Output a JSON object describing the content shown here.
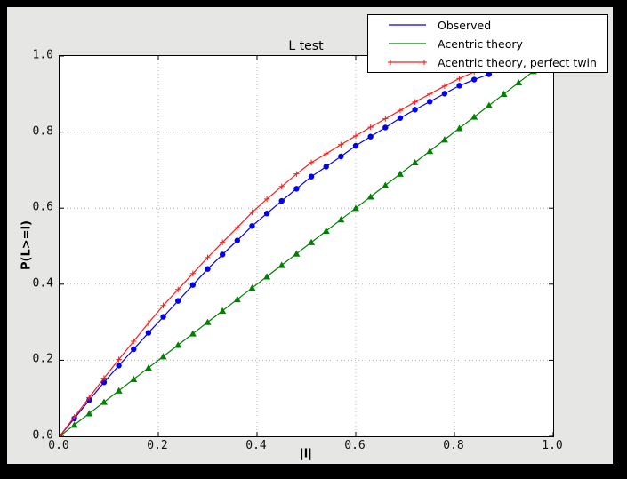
{
  "window": {
    "outer_bg": "#000000",
    "figure_bg": "#e6e6e4",
    "plot_bg": "#ffffff"
  },
  "chart_data": {
    "type": "line",
    "title": "L test",
    "xlabel": "|l|",
    "ylabel": "P(L>=l)",
    "xlim": [
      0.0,
      1.0
    ],
    "ylim": [
      0.0,
      1.0
    ],
    "xticks": [
      "0.0",
      "0.2",
      "0.4",
      "0.6",
      "0.8",
      "1.0"
    ],
    "yticks": [
      "0.0",
      "0.2",
      "0.4",
      "0.6",
      "0.8",
      "1.0"
    ],
    "grid": "dotted gridlines at 0.2 intervals on both axes",
    "grid_color": "#b4b4b4",
    "legend_position": "upper right, overlapping top of axes",
    "series": [
      {
        "name": "Observed",
        "color": "#0000ee",
        "marker": "circle",
        "legend_sample_markers": false,
        "x": [
          0.0,
          0.03,
          0.06,
          0.09,
          0.12,
          0.15,
          0.18,
          0.21,
          0.24,
          0.27,
          0.3,
          0.33,
          0.36,
          0.39,
          0.42,
          0.45,
          0.48,
          0.51,
          0.54,
          0.57,
          0.6,
          0.63,
          0.66,
          0.69,
          0.72,
          0.75,
          0.78,
          0.81,
          0.84,
          0.87
        ],
        "y": [
          0.0,
          0.047,
          0.095,
          0.142,
          0.186,
          0.229,
          0.272,
          0.314,
          0.356,
          0.398,
          0.44,
          0.478,
          0.515,
          0.553,
          0.586,
          0.619,
          0.651,
          0.683,
          0.709,
          0.736,
          0.764,
          0.788,
          0.812,
          0.837,
          0.859,
          0.88,
          0.901,
          0.922,
          0.938,
          0.952
        ]
      },
      {
        "name": "Acentric theory",
        "color": "#008000",
        "marker": "triangle",
        "legend_sample_markers": false,
        "x": [
          0.0,
          0.03,
          0.06,
          0.09,
          0.12,
          0.15,
          0.18,
          0.21,
          0.24,
          0.27,
          0.3,
          0.33,
          0.36,
          0.39,
          0.42,
          0.45,
          0.48,
          0.51,
          0.54,
          0.57,
          0.6,
          0.63,
          0.66,
          0.69,
          0.72,
          0.75,
          0.78,
          0.81,
          0.84,
          0.87,
          0.9,
          0.93,
          0.96
        ],
        "y": [
          0.0,
          0.03,
          0.06,
          0.09,
          0.12,
          0.15,
          0.18,
          0.21,
          0.24,
          0.27,
          0.3,
          0.33,
          0.36,
          0.39,
          0.42,
          0.45,
          0.48,
          0.51,
          0.54,
          0.57,
          0.6,
          0.63,
          0.66,
          0.69,
          0.72,
          0.75,
          0.78,
          0.81,
          0.84,
          0.87,
          0.9,
          0.93,
          0.96
        ]
      },
      {
        "name": "Acentric theory, perfect twin",
        "color": "#ff1a1a",
        "marker": "plus",
        "legend_sample_markers": true,
        "x": [
          0.0,
          0.03,
          0.06,
          0.09,
          0.12,
          0.15,
          0.18,
          0.21,
          0.24,
          0.27,
          0.3,
          0.33,
          0.36,
          0.39,
          0.42,
          0.45,
          0.48,
          0.51,
          0.54,
          0.57,
          0.6,
          0.63,
          0.66,
          0.69,
          0.72,
          0.75,
          0.78,
          0.81,
          0.84
        ],
        "y": [
          0.0,
          0.051,
          0.102,
          0.153,
          0.202,
          0.25,
          0.298,
          0.344,
          0.386,
          0.428,
          0.47,
          0.51,
          0.549,
          0.589,
          0.624,
          0.657,
          0.69,
          0.72,
          0.743,
          0.767,
          0.79,
          0.813,
          0.835,
          0.857,
          0.879,
          0.9,
          0.921,
          0.941,
          0.958
        ]
      }
    ]
  }
}
